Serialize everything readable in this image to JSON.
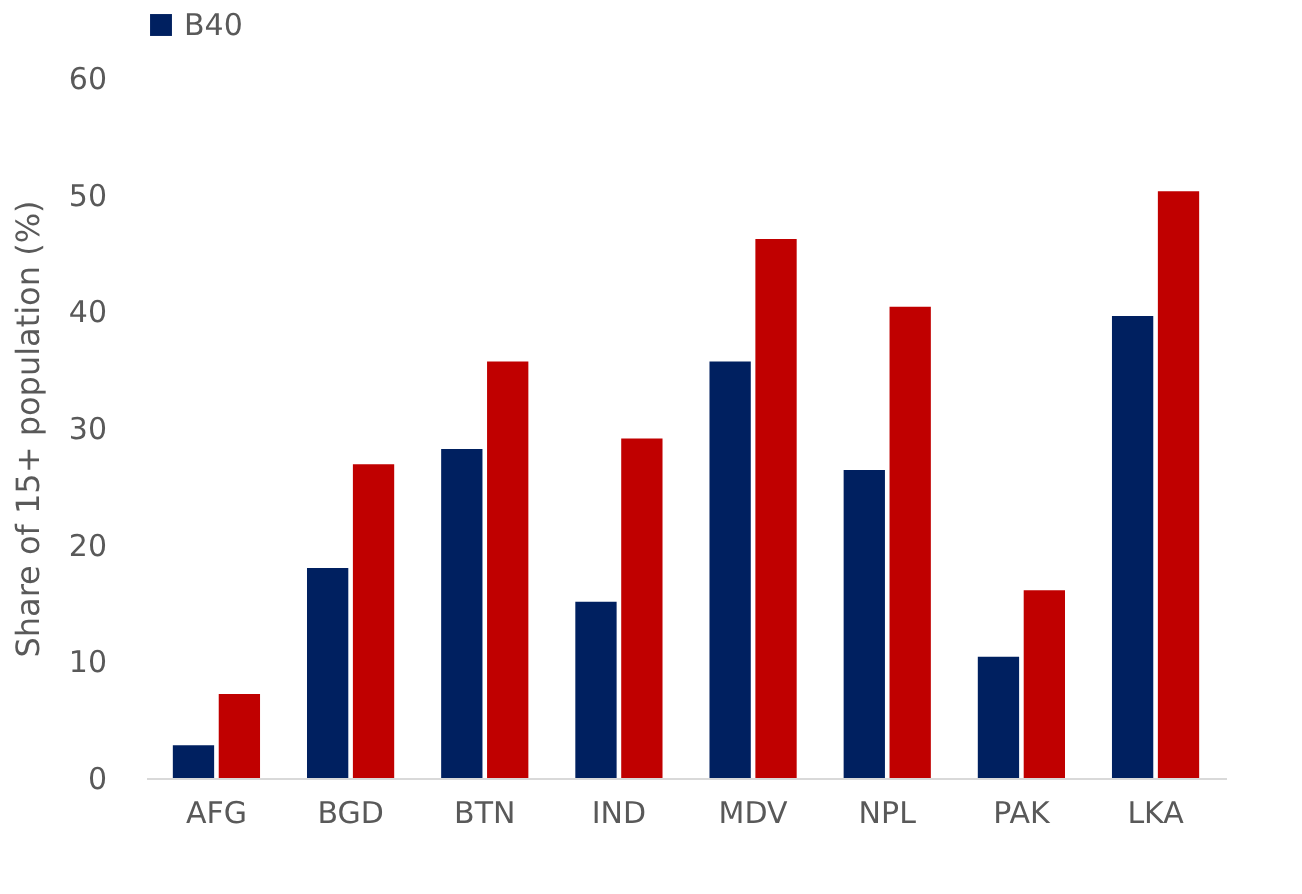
{
  "chart_data": {
    "type": "bar",
    "ylabel": "Share of 15+ population (%)",
    "categories": [
      "AFG",
      "BGD",
      "BTN",
      "IND",
      "MDV",
      "NPL",
      "PAK",
      "LKA"
    ],
    "series": [
      {
        "name": "B40",
        "color": "#002060",
        "values": [
          2.8,
          18.0,
          28.2,
          15.1,
          35.7,
          26.4,
          10.4,
          39.6
        ]
      },
      {
        "color": "#c00000",
        "values": [
          7.2,
          26.9,
          35.7,
          29.1,
          46.2,
          40.4,
          16.1,
          50.3
        ]
      }
    ],
    "ylim": [
      0,
      60
    ],
    "yticks": [
      0,
      10,
      20,
      30,
      40,
      50,
      60
    ],
    "grid": false,
    "legend": "top"
  }
}
